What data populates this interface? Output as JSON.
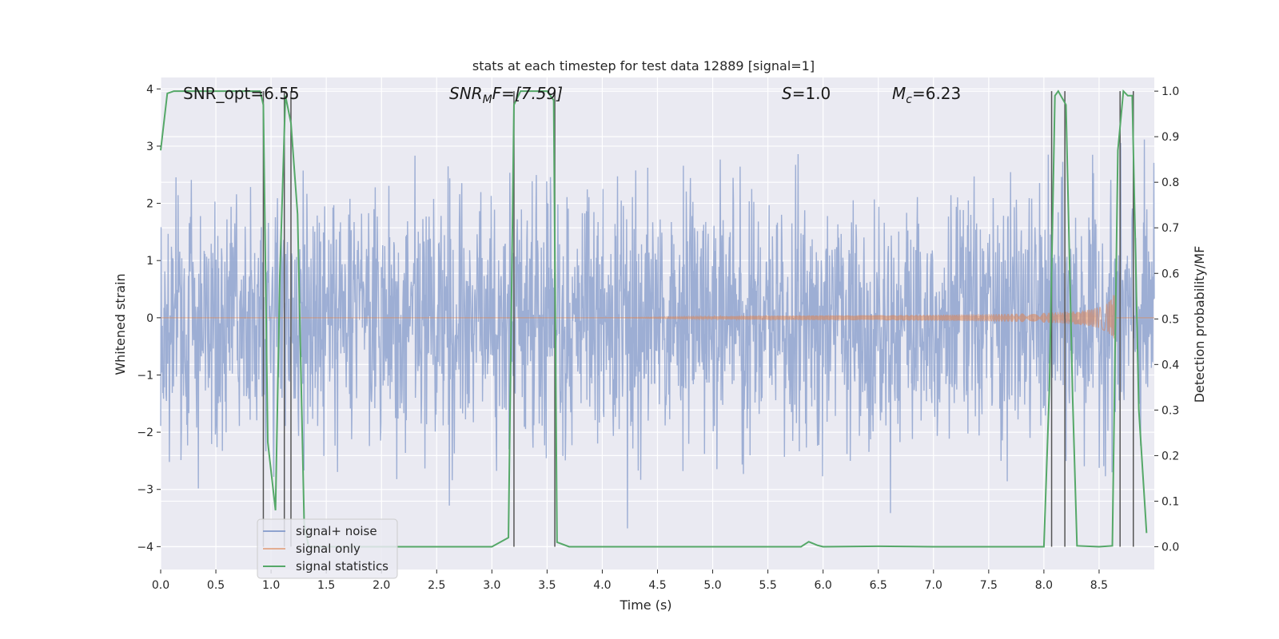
{
  "chart_data": {
    "type": "line",
    "title": "stats at each timestep for test data 12889 [signal=1]",
    "xlabel": "Time (s)",
    "ylabel_left": "Whitened strain",
    "ylabel_right": "Detection probability/MF",
    "xlim": [
      0.0,
      9.0
    ],
    "ylim_left": [
      -4.4,
      4.2
    ],
    "ylim_right": [
      -0.05,
      1.03
    ],
    "xticks": [
      "0.0",
      "0.5",
      "1.0",
      "1.5",
      "2.0",
      "2.5",
      "3.0",
      "3.5",
      "4.0",
      "4.5",
      "5.0",
      "5.5",
      "6.0",
      "6.5",
      "7.0",
      "7.5",
      "8.0",
      "8.5"
    ],
    "xtick_values": [
      0.0,
      0.5,
      1.0,
      1.5,
      2.0,
      2.5,
      3.0,
      3.5,
      4.0,
      4.5,
      5.0,
      5.5,
      6.0,
      6.5,
      7.0,
      7.5,
      8.0,
      8.5
    ],
    "yticks_left": [
      "4",
      "3",
      "2",
      "1",
      "0",
      "−1",
      "−2",
      "−3",
      "−4"
    ],
    "ytick_values_left": [
      4,
      3,
      2,
      1,
      0,
      -1,
      -2,
      -3,
      -4
    ],
    "yticks_right": [
      "1.0",
      "0.9",
      "0.8",
      "0.7",
      "0.6",
      "0.5",
      "0.4",
      "0.3",
      "0.2",
      "0.1",
      "0.0"
    ],
    "ytick_values_right": [
      1.0,
      0.9,
      0.8,
      0.7,
      0.6,
      0.5,
      0.4,
      0.3,
      0.2,
      0.1,
      0.0
    ],
    "annotations": {
      "snr_opt": "SNR_opt=6.55",
      "snr_mf_main": "SNR",
      "snr_mf_sub": "M",
      "snr_mf_rest": "F=[7.59]",
      "s_var": "S",
      "s_rest": "=1.0",
      "mc_var": "M",
      "mc_sub": "c",
      "mc_rest": "=6.23"
    },
    "series": [
      {
        "name": "signal+ noise",
        "color": "#8fa3cf",
        "axis": "left",
        "description": "whitened noisy strain, roughly gaussian with spikes up to about ±3.8",
        "envelope_peak": 3.8
      },
      {
        "name": "signal only",
        "color": "#dd8452",
        "axis": "left",
        "description": "chirp signal growing in amplitude toward merger near 8.65 s",
        "chirp_start": 4.0,
        "merger_time": 8.65,
        "peak_amplitude": 0.6
      },
      {
        "name": "signal statistics",
        "color": "#55a868",
        "axis": "right",
        "x": [
          0.0,
          0.06,
          0.12,
          0.5,
          0.9,
          0.93,
          0.97,
          1.04,
          1.08,
          1.13,
          1.18,
          1.24,
          1.3,
          1.34,
          1.4,
          2.0,
          3.0,
          3.15,
          3.2,
          3.26,
          3.3,
          3.5,
          3.56,
          3.59,
          3.7,
          4.0,
          5.0,
          5.8,
          5.87,
          5.95,
          6.0,
          6.5,
          7.0,
          8.0,
          8.05,
          8.1,
          8.13,
          8.2,
          8.26,
          8.3,
          8.5,
          8.62,
          8.67,
          8.72,
          8.76,
          8.8,
          8.86,
          8.93
        ],
        "values": [
          0.87,
          0.995,
          1.0,
          1.0,
          1.0,
          0.97,
          0.23,
          0.08,
          0.6,
          0.99,
          0.93,
          0.73,
          0.05,
          0.0,
          0.0,
          0.0,
          0.0,
          0.02,
          0.97,
          1.0,
          1.0,
          1.0,
          0.98,
          0.01,
          0.0,
          0.0,
          0.0,
          0.0,
          0.011,
          0.003,
          0.0,
          0.001,
          0.0,
          0.0,
          0.35,
          0.99,
          1.0,
          0.97,
          0.33,
          0.002,
          0.0,
          0.002,
          0.87,
          1.0,
          0.99,
          0.99,
          0.3,
          0.03
        ]
      }
    ],
    "vertical_lines_x": [
      0.93,
      1.12,
      1.18,
      3.2,
      3.57,
      8.07,
      8.19,
      8.69,
      8.81
    ],
    "vertical_line_color": "#555555",
    "grid": true,
    "background_color": "#eaeaf2",
    "legend_position": "lower-left",
    "legend": [
      "signal+ noise",
      "signal only",
      "signal statistics"
    ]
  }
}
